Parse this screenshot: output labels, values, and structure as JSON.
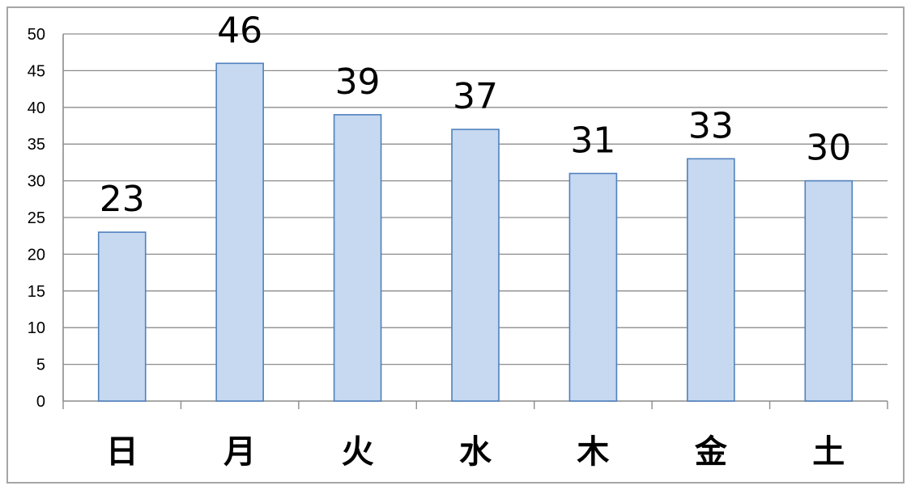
{
  "chart_data": {
    "type": "bar",
    "categories": [
      "日",
      "月",
      "火",
      "水",
      "木",
      "金",
      "土"
    ],
    "values": [
      23,
      46,
      39,
      37,
      31,
      33,
      30
    ],
    "data_labels": [
      "23",
      "46",
      "39",
      "37",
      "31",
      "33",
      "30"
    ],
    "y_ticks": [
      "0",
      "5",
      "10",
      "15",
      "20",
      "25",
      "30",
      "35",
      "40",
      "45",
      "50"
    ],
    "ylim": [
      0,
      50
    ],
    "ytick_step": 5,
    "title": "",
    "xlabel": "",
    "ylabel": "",
    "grid": true,
    "legend": false,
    "colors": {
      "bar_fill": "#c6d9f1",
      "bar_stroke": "#4f81bd",
      "grid": "#8c8c8c",
      "frame": "#a6a6a6"
    }
  }
}
